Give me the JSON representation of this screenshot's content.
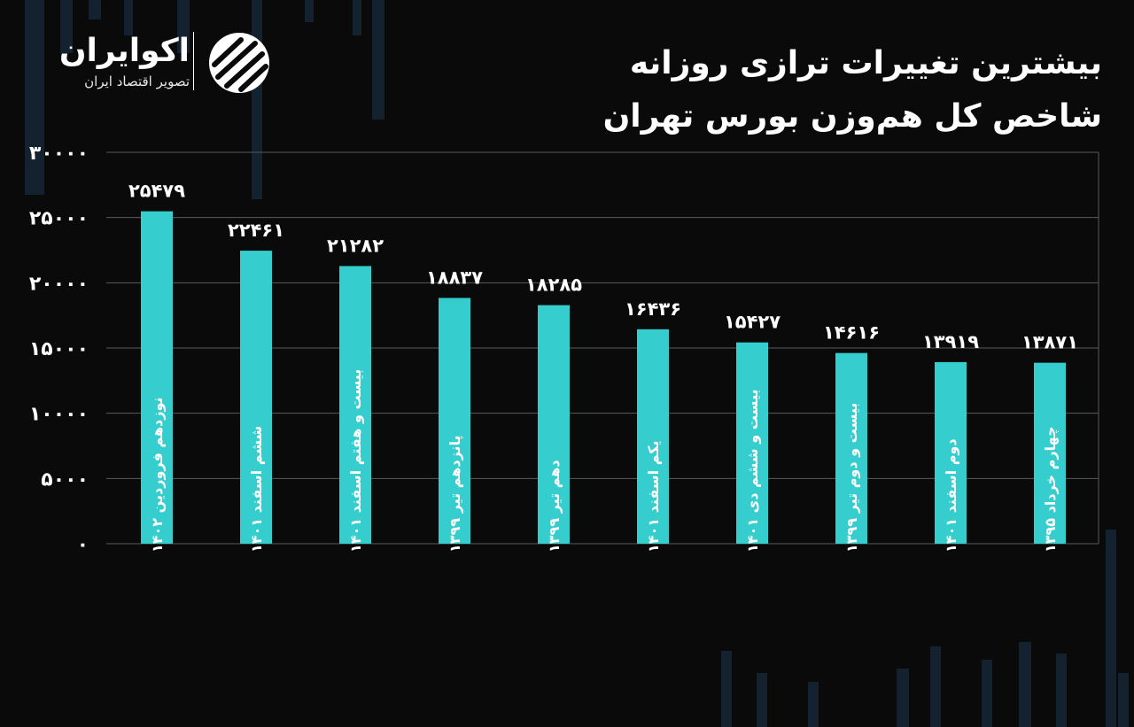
{
  "brand": {
    "name": "اکوایران",
    "tagline": "تصویر اقتصاد ایران"
  },
  "title_lines": [
    "بیشترین تغییرات ترازی روزانه",
    "شاخص کل هم‌وزن بورس تهران"
  ],
  "colors": {
    "background": "#0a0a0a",
    "bar": "#35cdcd",
    "grid": "#5a5a5a",
    "text": "#ffffff",
    "deco": "#13222e"
  },
  "chart_data": {
    "type": "bar",
    "title": "بیشترین تغییرات ترازی روزانه شاخص کل هم‌وزن بورس تهران",
    "xlabel": "",
    "ylabel": "",
    "ylim": [
      0,
      30000
    ],
    "grid": true,
    "yticks": [
      0,
      5000,
      10000,
      15000,
      20000,
      25000,
      30000
    ],
    "ytick_labels": [
      "۰",
      "۵۰۰۰",
      "۱۰۰۰۰",
      "۱۵۰۰۰",
      "۲۰۰۰۰",
      "۲۵۰۰۰",
      "۳۰۰۰۰"
    ],
    "categories": [
      "نوزدهم فروردین ۱۴۰۲",
      "ششم اسفند ۱۴۰۱",
      "بیست و هفتم اسفند ۱۴۰۱",
      "پانزدهم تیر ۱۳۹۹",
      "دهم تیر ۱۳۹۹",
      "یکم اسفند ۱۴۰۱",
      "بیست و ششم دی ۱۴۰۱",
      "بیست و دوم تیر ۱۳۹۹",
      "دوم اسفند ۱۴۰۱",
      "چهارم خرداد ۱۳۹۵"
    ],
    "values": [
      25479,
      22461,
      21282,
      18837,
      18285,
      16436,
      15427,
      14616,
      13919,
      13871
    ],
    "value_labels": [
      "۲۵۴۷۹",
      "۲۲۴۶۱",
      "۲۱۲۸۲",
      "۱۸۸۳۷",
      "۱۸۲۸۵",
      "۱۶۴۳۶",
      "۱۵۴۲۷",
      "۱۴۶۱۶",
      "۱۳۹۱۹",
      "۱۳۸۷۱"
    ]
  }
}
